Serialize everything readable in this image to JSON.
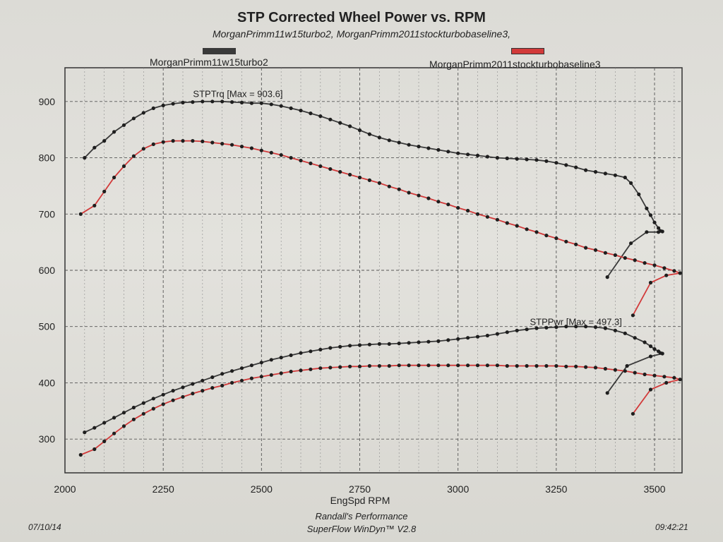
{
  "chart_data": {
    "type": "line",
    "title": "STP Corrected Wheel Power vs. RPM",
    "subtitle": "MorganPrimm11w15turbo2, MorganPrimm2011stockturbobaseline3,",
    "xlabel": "EngSpd  RPM",
    "ylabel": "",
    "xlim": [
      2000,
      3570
    ],
    "ylim": [
      240,
      960
    ],
    "x_ticks": [
      2000,
      2250,
      2500,
      2750,
      3000,
      3250,
      3500
    ],
    "y_ticks": [
      300,
      400,
      500,
      600,
      700,
      800,
      900
    ],
    "grid": true,
    "legend": [
      {
        "name": "MorganPrimm11w15turbo2",
        "color": "#3a3a3a"
      },
      {
        "name": "MorganPrimm2011stockturbobaseline3",
        "color": "#d23a3a"
      }
    ],
    "annotations": [
      {
        "text": "STPTrq [Max = 903.6]",
        "x": 2440,
        "y": 908
      },
      {
        "text": "STPPwr [Max = 497.3]",
        "x": 3300,
        "y": 503
      }
    ],
    "series": [
      {
        "name": "MorganPrimm11w15turbo2",
        "metric": "STPTrq",
        "color": "#3a3a3a",
        "x": [
          2050,
          2075,
          2100,
          2125,
          2150,
          2175,
          2200,
          2225,
          2250,
          2275,
          2300,
          2325,
          2350,
          2375,
          2400,
          2425,
          2450,
          2475,
          2500,
          2525,
          2550,
          2575,
          2600,
          2625,
          2650,
          2675,
          2700,
          2725,
          2750,
          2775,
          2800,
          2825,
          2850,
          2875,
          2900,
          2925,
          2950,
          2975,
          3000,
          3025,
          3050,
          3075,
          3100,
          3125,
          3150,
          3175,
          3200,
          3225,
          3250,
          3275,
          3300,
          3325,
          3350,
          3375,
          3400,
          3425,
          3440,
          3460,
          3480,
          3490,
          3500,
          3510,
          3515,
          3520,
          3510,
          3480,
          3440,
          3380
        ],
        "y": [
          800,
          818,
          830,
          846,
          858,
          870,
          880,
          888,
          893,
          896,
          898,
          899,
          900,
          900,
          900,
          899,
          898,
          897,
          897,
          895,
          892,
          888,
          884,
          879,
          874,
          868,
          862,
          856,
          849,
          842,
          836,
          831,
          827,
          823,
          820,
          817,
          814,
          811,
          808,
          806,
          804,
          802,
          800,
          799,
          798,
          797,
          796,
          794,
          791,
          787,
          783,
          778,
          775,
          772,
          769,
          765,
          755,
          735,
          710,
          698,
          685,
          675,
          670,
          669,
          668,
          668,
          648,
          588
        ]
      },
      {
        "name": "MorganPrimm2011stockturbobaseline3",
        "metric": "STPTrq",
        "color": "#d23a3a",
        "x": [
          2040,
          2075,
          2100,
          2125,
          2150,
          2175,
          2200,
          2225,
          2250,
          2275,
          2300,
          2325,
          2350,
          2375,
          2400,
          2425,
          2450,
          2475,
          2500,
          2525,
          2550,
          2575,
          2600,
          2625,
          2650,
          2675,
          2700,
          2725,
          2750,
          2775,
          2800,
          2825,
          2850,
          2875,
          2900,
          2925,
          2950,
          2975,
          3000,
          3025,
          3050,
          3075,
          3100,
          3125,
          3150,
          3175,
          3200,
          3225,
          3250,
          3275,
          3300,
          3325,
          3350,
          3375,
          3400,
          3425,
          3450,
          3475,
          3500,
          3525,
          3550,
          3565,
          3530,
          3490,
          3445
        ],
        "y": [
          700,
          715,
          740,
          765,
          785,
          803,
          816,
          824,
          828,
          830,
          830,
          830,
          829,
          827,
          825,
          823,
          820,
          817,
          813,
          809,
          805,
          800,
          795,
          790,
          785,
          780,
          775,
          770,
          765,
          760,
          755,
          749,
          744,
          738,
          733,
          728,
          722,
          717,
          711,
          706,
          700,
          695,
          690,
          684,
          679,
          673,
          668,
          662,
          657,
          651,
          646,
          640,
          636,
          631,
          627,
          622,
          618,
          613,
          609,
          604,
          599,
          595,
          591,
          578,
          520
        ]
      },
      {
        "name": "MorganPrimm11w15turbo2",
        "metric": "STPPwr",
        "color": "#3a3a3a",
        "x": [
          2050,
          2075,
          2100,
          2125,
          2150,
          2175,
          2200,
          2225,
          2250,
          2275,
          2300,
          2325,
          2350,
          2375,
          2400,
          2425,
          2450,
          2475,
          2500,
          2525,
          2550,
          2575,
          2600,
          2625,
          2650,
          2675,
          2700,
          2725,
          2750,
          2775,
          2800,
          2825,
          2850,
          2875,
          2900,
          2925,
          2950,
          2975,
          3000,
          3025,
          3050,
          3075,
          3100,
          3125,
          3150,
          3175,
          3200,
          3225,
          3250,
          3275,
          3300,
          3325,
          3350,
          3375,
          3400,
          3425,
          3450,
          3475,
          3490,
          3500,
          3510,
          3515,
          3520,
          3490,
          3430,
          3380
        ],
        "y": [
          312,
          320,
          329,
          338,
          347,
          356,
          364,
          372,
          379,
          386,
          392,
          398,
          404,
          410,
          416,
          421,
          426,
          431,
          436,
          441,
          445,
          449,
          453,
          456,
          459,
          462,
          464,
          466,
          467,
          468,
          469,
          469,
          470,
          471,
          472,
          473,
          474,
          476,
          478,
          480,
          482,
          484,
          487,
          490,
          493,
          495,
          497,
          498,
          499,
          500,
          500,
          500,
          499,
          497,
          493,
          488,
          480,
          472,
          465,
          460,
          456,
          453,
          452,
          447,
          430,
          382
        ]
      },
      {
        "name": "MorganPrimm2011stockturbobaseline3",
        "metric": "STPPwr",
        "color": "#d23a3a",
        "x": [
          2040,
          2075,
          2100,
          2125,
          2150,
          2175,
          2200,
          2225,
          2250,
          2275,
          2300,
          2325,
          2350,
          2375,
          2400,
          2425,
          2450,
          2475,
          2500,
          2525,
          2550,
          2575,
          2600,
          2625,
          2650,
          2675,
          2700,
          2725,
          2750,
          2775,
          2800,
          2825,
          2850,
          2875,
          2900,
          2925,
          2950,
          2975,
          3000,
          3025,
          3050,
          3075,
          3100,
          3125,
          3150,
          3175,
          3200,
          3225,
          3250,
          3275,
          3300,
          3325,
          3350,
          3375,
          3400,
          3425,
          3450,
          3475,
          3500,
          3525,
          3550,
          3565,
          3530,
          3490,
          3445
        ],
        "y": [
          272,
          282,
          296,
          310,
          323,
          335,
          345,
          354,
          362,
          369,
          375,
          381,
          386,
          391,
          395,
          400,
          404,
          408,
          411,
          414,
          417,
          420,
          422,
          424,
          426,
          427,
          428,
          429,
          429,
          430,
          430,
          430,
          431,
          431,
          431,
          431,
          431,
          431,
          431,
          431,
          431,
          431,
          431,
          430,
          430,
          430,
          430,
          430,
          430,
          429,
          429,
          428,
          427,
          425,
          423,
          421,
          418,
          415,
          413,
          411,
          409,
          406,
          400,
          388,
          345
        ]
      }
    ]
  },
  "footer": {
    "date": "07/10/14",
    "shop": "Randall's Performance",
    "software": "SuperFlow WinDyn™ V2.8",
    "time": "09:42:21"
  }
}
